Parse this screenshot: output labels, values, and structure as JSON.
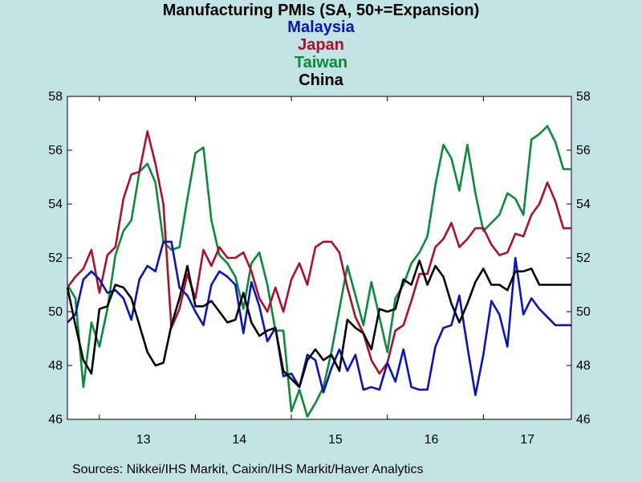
{
  "chart_data": {
    "type": "line",
    "title": "Manufacturing PMIs (SA, 50+=Expansion)",
    "x_range": [
      "2012-09",
      "2017-12"
    ],
    "x_tick_labels": [
      "13",
      "14",
      "15",
      "16",
      "17"
    ],
    "ylim": [
      46,
      58
    ],
    "y_ticks": [
      46,
      48,
      50,
      52,
      54,
      56,
      58
    ],
    "grid": false,
    "legend_placement": "top-center",
    "source": "Sources:  Nikkei/IHS Markit, Caixin/IHS Markit/Haver Analytics",
    "series": [
      {
        "name": "Taiwan",
        "color": "#0a8a3a",
        "x": [
          "2012-09",
          "2012-10",
          "2012-11",
          "2012-12",
          "2013-01",
          "2013-02",
          "2013-03",
          "2013-04",
          "2013-05",
          "2013-06",
          "2013-07",
          "2013-08",
          "2013-09",
          "2013-10",
          "2013-11",
          "2013-12",
          "2014-01",
          "2014-02",
          "2014-03",
          "2014-04",
          "2014-05",
          "2014-06",
          "2014-07",
          "2014-08",
          "2014-09",
          "2014-10",
          "2014-11",
          "2014-12",
          "2015-01",
          "2015-02",
          "2015-03",
          "2015-04",
          "2015-05",
          "2015-06",
          "2015-07",
          "2015-08",
          "2015-09",
          "2015-10",
          "2015-11",
          "2015-12",
          "2016-01",
          "2016-02",
          "2016-03",
          "2016-04",
          "2016-05",
          "2016-06",
          "2016-07",
          "2016-08",
          "2016-09",
          "2016-10",
          "2016-11",
          "2016-12",
          "2017-01",
          "2017-02",
          "2017-03",
          "2017-04",
          "2017-05",
          "2017-06",
          "2017-07",
          "2017-08",
          "2017-09",
          "2017-10",
          "2017-11",
          "2017-12"
        ],
        "values": [
          51.0,
          50.5,
          47.2,
          49.6,
          48.7,
          50.1,
          52.1,
          53.0,
          53.4,
          55.2,
          55.5,
          54.8,
          52.6,
          52.3,
          52.4,
          54.2,
          55.9,
          56.1,
          53.4,
          52.1,
          51.8,
          51.3,
          50.1,
          51.8,
          52.2,
          51.0,
          49.3,
          49.3,
          46.3,
          47.1,
          46.1,
          46.6,
          47.2,
          48.5,
          50.1,
          51.7,
          50.6,
          49.5,
          51.1,
          49.8,
          48.5,
          50.5,
          51.0,
          51.8,
          52.2,
          52.8,
          54.7,
          56.2,
          55.7,
          54.5,
          56.2,
          54.4,
          53.0,
          53.3,
          53.6,
          54.4,
          54.2,
          53.6,
          56.4,
          56.6,
          56.9,
          56.3,
          55.3,
          55.3
        ]
      },
      {
        "name": "Japan",
        "color": "#a8102c",
        "x": [
          "2012-09",
          "2012-10",
          "2012-11",
          "2012-12",
          "2013-01",
          "2013-02",
          "2013-03",
          "2013-04",
          "2013-05",
          "2013-06",
          "2013-07",
          "2013-08",
          "2013-09",
          "2013-10",
          "2013-11",
          "2013-12",
          "2014-01",
          "2014-02",
          "2014-03",
          "2014-04",
          "2014-05",
          "2014-06",
          "2014-07",
          "2014-08",
          "2014-09",
          "2014-10",
          "2014-11",
          "2014-12",
          "2015-01",
          "2015-02",
          "2015-03",
          "2015-04",
          "2015-05",
          "2015-06",
          "2015-07",
          "2015-08",
          "2015-09",
          "2015-10",
          "2015-11",
          "2015-12",
          "2016-01",
          "2016-02",
          "2016-03",
          "2016-04",
          "2016-05",
          "2016-06",
          "2016-07",
          "2016-08",
          "2016-09",
          "2016-10",
          "2016-11",
          "2016-12",
          "2017-01",
          "2017-02",
          "2017-03",
          "2017-04",
          "2017-05",
          "2017-06",
          "2017-07",
          "2017-08",
          "2017-09",
          "2017-10",
          "2017-11",
          "2017-12"
        ],
        "values": [
          50.9,
          51.3,
          51.6,
          52.3,
          50.7,
          52.1,
          52.4,
          54.2,
          55.1,
          55.2,
          56.7,
          55.5,
          54.0,
          49.4,
          50.1,
          51.4,
          50.5,
          52.3,
          51.7,
          52.4,
          52.0,
          52.0,
          52.2,
          51.5,
          50.5,
          50.0,
          50.9,
          50.0,
          51.2,
          51.8,
          51.0,
          52.4,
          52.6,
          52.6,
          52.2,
          50.9,
          49.8,
          49.2,
          48.2,
          47.7,
          48.1,
          49.3,
          49.5,
          50.4,
          51.4,
          51.4,
          52.4,
          52.7,
          53.3,
          52.4,
          52.7,
          53.1,
          53.1,
          52.5,
          52.1,
          52.2,
          52.9,
          52.8,
          53.6,
          54.0,
          54.8,
          54.1,
          53.1,
          53.1
        ]
      },
      {
        "name": "Malaysia",
        "color": "#0a14b4",
        "x": [
          "2012-09",
          "2012-10",
          "2012-11",
          "2012-12",
          "2013-01",
          "2013-02",
          "2013-03",
          "2013-04",
          "2013-05",
          "2013-06",
          "2013-07",
          "2013-08",
          "2013-09",
          "2013-10",
          "2013-11",
          "2013-12",
          "2014-01",
          "2014-02",
          "2014-03",
          "2014-04",
          "2014-05",
          "2014-06",
          "2014-07",
          "2014-08",
          "2014-09",
          "2014-10",
          "2014-11",
          "2014-12",
          "2015-01",
          "2015-02",
          "2015-03",
          "2015-04",
          "2015-05",
          "2015-06",
          "2015-07",
          "2015-08",
          "2015-09",
          "2015-10",
          "2015-11",
          "2015-12",
          "2016-01",
          "2016-02",
          "2016-03",
          "2016-04",
          "2016-05",
          "2016-06",
          "2016-07",
          "2016-08",
          "2016-09",
          "2016-10",
          "2016-11",
          "2016-12",
          "2017-01",
          "2017-02",
          "2017-03",
          "2017-04",
          "2017-05",
          "2017-06",
          "2017-07",
          "2017-08",
          "2017-09",
          "2017-10",
          "2017-11",
          "2017-12"
        ],
        "values": [
          49.6,
          49.9,
          51.2,
          51.5,
          51.2,
          50.7,
          50.8,
          50.5,
          49.7,
          51.2,
          51.7,
          51.5,
          52.6,
          52.6,
          50.9,
          50.6,
          50.0,
          49.5,
          51.0,
          51.5,
          51.3,
          51.0,
          49.2,
          51.1,
          50.2,
          48.9,
          49.4,
          47.6,
          47.7,
          47.2,
          48.4,
          48.2,
          47.0,
          47.9,
          48.6,
          47.8,
          48.4,
          47.1,
          47.2,
          47.1,
          48.1,
          47.4,
          48.6,
          47.2,
          47.1,
          47.1,
          48.7,
          49.4,
          49.5,
          50.6,
          48.7,
          46.9,
          48.4,
          50.4,
          49.9,
          48.7,
          52.0,
          49.9,
          50.5,
          50.1,
          49.8,
          49.5,
          49.5,
          49.5
        ]
      },
      {
        "name": "China",
        "color": "#000000",
        "x": [
          "2012-09",
          "2012-10",
          "2012-11",
          "2012-12",
          "2013-01",
          "2013-02",
          "2013-03",
          "2013-04",
          "2013-05",
          "2013-06",
          "2013-07",
          "2013-08",
          "2013-09",
          "2013-10",
          "2013-11",
          "2013-12",
          "2014-01",
          "2014-02",
          "2014-03",
          "2014-04",
          "2014-05",
          "2014-06",
          "2014-07",
          "2014-08",
          "2014-09",
          "2014-10",
          "2014-11",
          "2014-12",
          "2015-01",
          "2015-02",
          "2015-03",
          "2015-04",
          "2015-05",
          "2015-06",
          "2015-07",
          "2015-08",
          "2015-09",
          "2015-10",
          "2015-11",
          "2015-12",
          "2016-01",
          "2016-02",
          "2016-03",
          "2016-04",
          "2016-05",
          "2016-06",
          "2016-07",
          "2016-08",
          "2016-09",
          "2016-10",
          "2016-11",
          "2016-12",
          "2017-01",
          "2017-02",
          "2017-03",
          "2017-04",
          "2017-05",
          "2017-06",
          "2017-07",
          "2017-08",
          "2017-09",
          "2017-10",
          "2017-11",
          "2017-12"
        ],
        "values": [
          50.9,
          49.5,
          48.2,
          47.7,
          50.1,
          50.2,
          51.0,
          50.9,
          50.5,
          49.5,
          48.5,
          48.0,
          48.1,
          49.5,
          50.5,
          51.7,
          50.2,
          50.2,
          50.4,
          50.0,
          49.6,
          49.7,
          50.7,
          49.6,
          49.1,
          49.3,
          49.4,
          47.8,
          47.5,
          47.2,
          48.2,
          48.6,
          48.2,
          48.4,
          47.8,
          49.7,
          49.4,
          49.2,
          48.6,
          50.1,
          50.0,
          50.1,
          51.2,
          51.0,
          51.9,
          51.0,
          51.7,
          51.3,
          50.3,
          49.6,
          50.3,
          51.1,
          51.6,
          51.0,
          51.0,
          50.8,
          51.5,
          51.5,
          51.6,
          51.0,
          51.0,
          51.0,
          51.0,
          51.0
        ]
      }
    ]
  }
}
